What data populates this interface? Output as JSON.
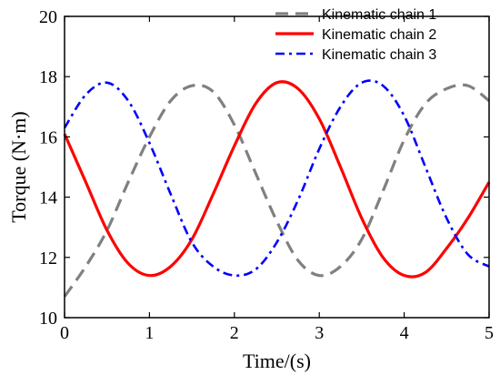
{
  "chart_data": {
    "type": "line",
    "xlabel": "Time/(s)",
    "ylabel": "Torque (N·m)",
    "xlim": [
      0,
      5
    ],
    "ylim": [
      10,
      20
    ],
    "x_ticks": [
      "0",
      "1",
      "2",
      "3",
      "4",
      "5"
    ],
    "y_ticks": [
      "10",
      "12",
      "14",
      "16",
      "18",
      "20"
    ],
    "grid": false,
    "legend_position": "top-right",
    "series": [
      {
        "name": "Kinematic chain 1",
        "color": "#808080",
        "style": "dashed",
        "x": [
          0,
          0.25,
          0.5,
          0.75,
          1.0,
          1.25,
          1.5,
          1.75,
          2.0,
          2.25,
          2.5,
          2.75,
          3.0,
          3.25,
          3.5,
          3.75,
          4.0,
          4.25,
          4.5,
          4.75,
          5.0
        ],
        "y": [
          10.7,
          11.7,
          12.9,
          14.5,
          16.0,
          17.2,
          17.7,
          17.5,
          16.4,
          14.8,
          13.2,
          11.9,
          11.4,
          11.7,
          12.6,
          14.2,
          15.9,
          17.1,
          17.6,
          17.7,
          17.2
        ]
      },
      {
        "name": "Kinematic chain 2",
        "color": "#ff0000",
        "style": "solid",
        "x": [
          0,
          0.25,
          0.5,
          0.75,
          1.0,
          1.25,
          1.5,
          1.75,
          2.0,
          2.25,
          2.5,
          2.75,
          3.0,
          3.25,
          3.5,
          3.75,
          4.0,
          4.25,
          4.5,
          4.75,
          5.0
        ],
        "y": [
          16.1,
          14.5,
          12.9,
          11.8,
          11.4,
          11.7,
          12.6,
          14.1,
          15.7,
          17.1,
          17.8,
          17.6,
          16.6,
          15.0,
          13.3,
          12.0,
          11.4,
          11.5,
          12.3,
          13.3,
          14.5
        ]
      },
      {
        "name": "Kinematic chain 3",
        "color": "#0000ff",
        "style": "dash-dot",
        "x": [
          0,
          0.25,
          0.5,
          0.75,
          1.0,
          1.25,
          1.5,
          1.75,
          2.0,
          2.25,
          2.5,
          2.75,
          3.0,
          3.25,
          3.5,
          3.75,
          4.0,
          4.25,
          4.5,
          4.75,
          5.0
        ],
        "y": [
          16.3,
          17.4,
          17.8,
          17.2,
          15.8,
          14.1,
          12.5,
          11.7,
          11.4,
          11.6,
          12.5,
          13.9,
          15.6,
          17.0,
          17.8,
          17.7,
          16.7,
          15.0,
          13.3,
          12.1,
          11.7
        ]
      }
    ]
  }
}
